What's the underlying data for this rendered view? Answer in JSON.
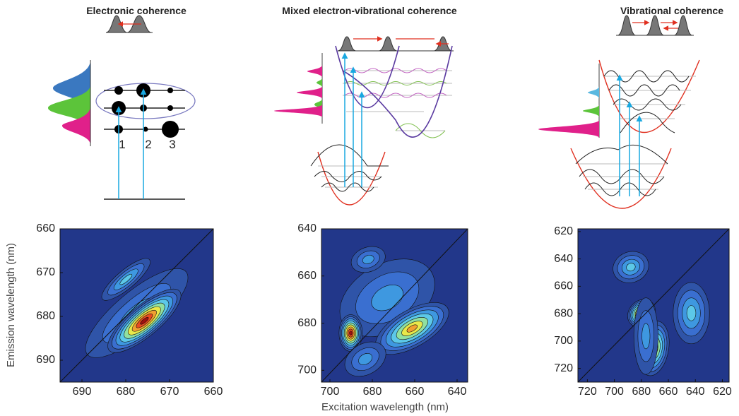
{
  "panels": [
    {
      "title": "Electronic coherence",
      "labels": [
        "1",
        "2",
        "3"
      ],
      "plot": {
        "xlim": [
          695,
          660
        ],
        "ylim": [
          660,
          695
        ],
        "xticks": [
          690,
          680,
          670,
          660
        ],
        "yticks": [
          660,
          670,
          680,
          690
        ]
      }
    },
    {
      "title": "Mixed electron-vibrational coherence",
      "plot": {
        "xlim": [
          704,
          635
        ],
        "ylim": [
          640,
          705
        ],
        "xticks": [
          700,
          680,
          660,
          640
        ],
        "yticks": [
          640,
          660,
          680,
          700
        ]
      }
    },
    {
      "title": "Vibrational coherence",
      "plot": {
        "xlim": [
          727,
          615
        ],
        "ylim": [
          618,
          730
        ],
        "xticks": [
          720,
          700,
          680,
          660,
          640,
          620
        ],
        "yticks": [
          620,
          640,
          660,
          680,
          700,
          720
        ]
      }
    }
  ],
  "ylabel": "Emission wavelength (nm)",
  "xlabel": "Excitation wavelength (nm)"
}
